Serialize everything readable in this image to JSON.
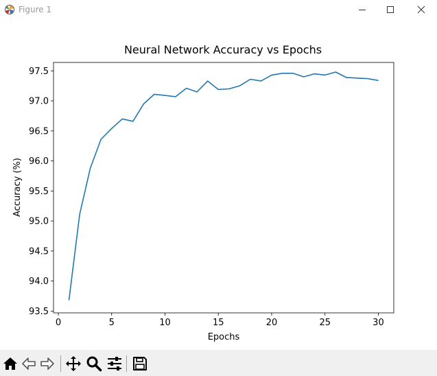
{
  "window": {
    "title": "Figure 1",
    "icons": {
      "app": "matplotlib-icon",
      "minimize": "minimize-icon",
      "maximize": "maximize-icon",
      "close": "close-icon"
    }
  },
  "toolbar": {
    "buttons": [
      {
        "name": "home-icon"
      },
      {
        "name": "back-arrow-icon"
      },
      {
        "name": "forward-arrow-icon"
      },
      {
        "name": "pan-move-icon"
      },
      {
        "name": "zoom-magnifier-icon"
      },
      {
        "name": "configure-subplots-icon"
      },
      {
        "name": "save-floppy-icon"
      }
    ]
  },
  "colors": {
    "line": "#1f77b4",
    "toolbar_bg": "#f0f0f0",
    "title_text": "#9a9a9a"
  },
  "chart_data": {
    "type": "line",
    "title": "Neural Network Accuracy vs Epochs",
    "xlabel": "Epochs",
    "ylabel": "Accuracy (%)",
    "xlim": [
      -0.45,
      31.45
    ],
    "ylim": [
      93.47,
      97.64
    ],
    "xticks": [
      0,
      5,
      10,
      15,
      20,
      25,
      30
    ],
    "xtick_labels": [
      "0",
      "5",
      "10",
      "15",
      "20",
      "25",
      "30"
    ],
    "yticks": [
      93.5,
      94.0,
      94.5,
      95.0,
      95.5,
      96.0,
      96.5,
      97.0,
      97.5
    ],
    "ytick_labels": [
      "93.5",
      "94.0",
      "94.5",
      "95.0",
      "95.5",
      "96.0",
      "96.5",
      "97.0",
      "97.5"
    ],
    "grid": false,
    "series": [
      {
        "x": [
          1,
          2,
          3,
          4,
          5,
          6,
          7,
          8,
          9,
          10,
          11,
          12,
          13,
          14,
          15,
          16,
          17,
          18,
          19,
          20,
          21,
          22,
          23,
          24,
          25,
          26,
          27,
          28,
          29,
          30
        ],
        "values": [
          93.68,
          95.11,
          95.88,
          96.36,
          96.54,
          96.7,
          96.66,
          96.95,
          97.11,
          97.09,
          97.07,
          97.21,
          97.15,
          97.33,
          97.19,
          97.2,
          97.25,
          97.36,
          97.33,
          97.43,
          97.46,
          97.46,
          97.4,
          97.45,
          97.43,
          97.48,
          97.39,
          97.38,
          97.37,
          97.34
        ]
      }
    ]
  }
}
